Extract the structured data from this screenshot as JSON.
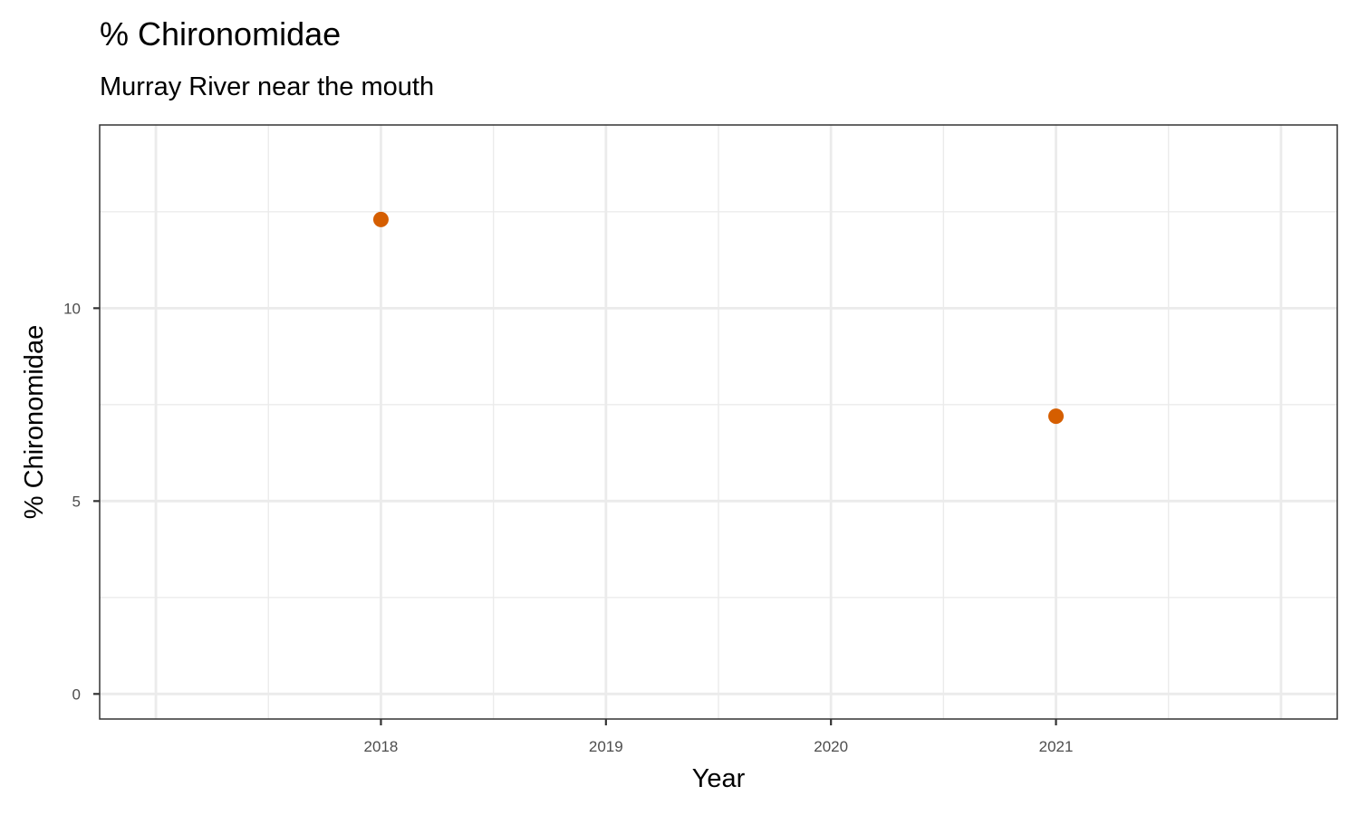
{
  "chart_data": {
    "type": "scatter",
    "title": "% Chironomidae",
    "subtitle": "Murray River near the mouth",
    "xlabel": "Year",
    "ylabel": "% Chironomidae",
    "x_ticks": [
      "2018",
      "2019",
      "2020",
      "2021"
    ],
    "y_ticks": [
      "0",
      "5",
      "10"
    ],
    "xlim": [
      2016.75,
      2022.25
    ],
    "ylim": [
      -0.65,
      14.75
    ],
    "grid": true,
    "legend": "none",
    "point_color": "#D55E00",
    "series": [
      {
        "x": [
          2018,
          2021
        ],
        "y": [
          12.3,
          7.2
        ]
      }
    ]
  }
}
